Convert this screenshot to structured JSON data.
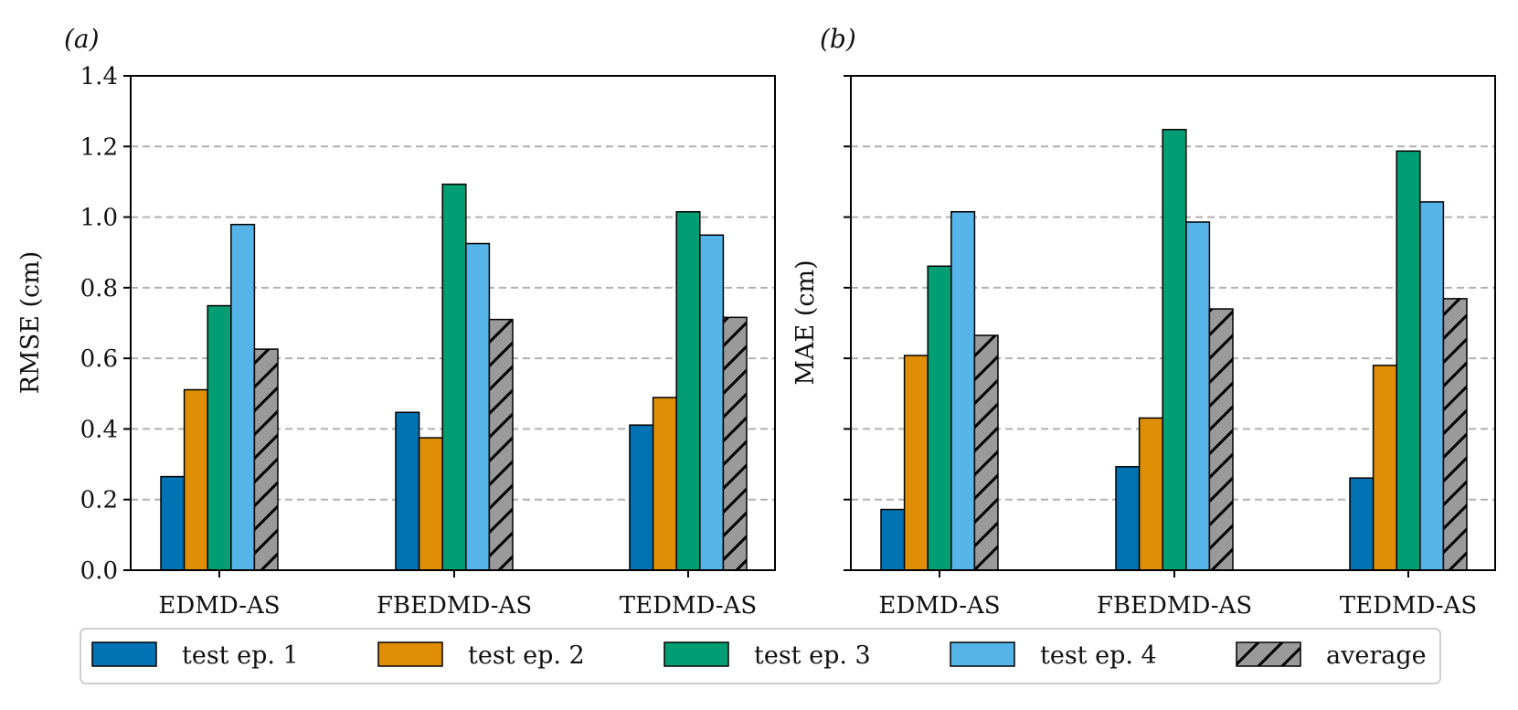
{
  "chart_data": [
    {
      "type": "bar",
      "panel_label": "(a)",
      "ylabel": "RMSE (cm)",
      "ylim": [
        0,
        1.4
      ],
      "yticks": [
        0.0,
        0.2,
        0.4,
        0.6,
        0.8,
        1.0,
        1.2,
        1.4
      ],
      "ytick_labels": [
        "0.0",
        "0.2",
        "0.4",
        "0.6",
        "0.8",
        "1.0",
        "1.2",
        "1.4"
      ],
      "grid": "horizontal dashed",
      "categories": [
        "EDMD-AS",
        "FBEDMD-AS",
        "TEDMD-AS"
      ],
      "series": [
        {
          "name": "test ep. 1",
          "values": [
            0.265,
            0.447,
            0.411
          ]
        },
        {
          "name": "test ep. 2",
          "values": [
            0.511,
            0.375,
            0.489
          ]
        },
        {
          "name": "test ep. 3",
          "values": [
            0.749,
            1.093,
            1.015
          ]
        },
        {
          "name": "test ep. 4",
          "values": [
            0.979,
            0.925,
            0.949
          ]
        },
        {
          "name": "average",
          "values": [
            0.626,
            0.71,
            0.716
          ]
        }
      ]
    },
    {
      "type": "bar",
      "panel_label": "(b)",
      "ylabel": "MAE (cm)",
      "ylim": [
        0,
        1.4
      ],
      "grid": "horizontal dashed",
      "categories": [
        "EDMD-AS",
        "FBEDMD-AS",
        "TEDMD-AS"
      ],
      "series": [
        {
          "name": "test ep. 1",
          "values": [
            0.172,
            0.293,
            0.261
          ]
        },
        {
          "name": "test ep. 2",
          "values": [
            0.608,
            0.431,
            0.58
          ]
        },
        {
          "name": "test ep. 3",
          "values": [
            0.861,
            1.248,
            1.187
          ]
        },
        {
          "name": "test ep. 4",
          "values": [
            1.015,
            0.986,
            1.043
          ]
        },
        {
          "name": "average",
          "values": [
            0.665,
            0.74,
            0.769
          ]
        }
      ]
    }
  ],
  "legend": {
    "placement": "bottom",
    "items": [
      {
        "label": "test ep. 1",
        "color": "#0173b2"
      },
      {
        "label": "test ep. 2",
        "color": "#de8f05"
      },
      {
        "label": "test ep. 3",
        "color": "#029e73"
      },
      {
        "label": "test ep. 4",
        "color": "#56b4e9"
      },
      {
        "label": "average",
        "color": "#9a9a9a",
        "hatch": "diagonal"
      }
    ]
  }
}
